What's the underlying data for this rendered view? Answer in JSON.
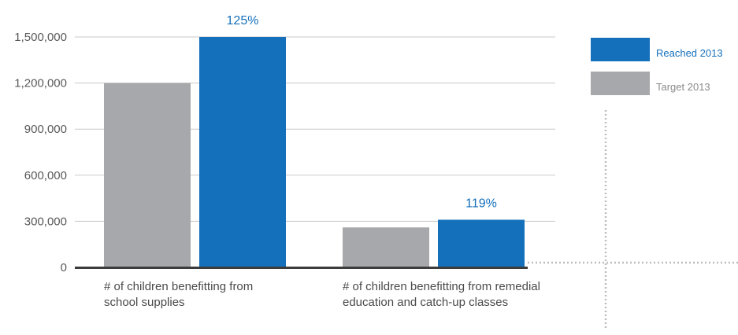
{
  "colors": {
    "reached": "#1470bb",
    "target": "#a7a8ab",
    "axis": "#3c3c3c",
    "grid": "#c9c9c9",
    "dotted": "#bdbdbd"
  },
  "chart_data": {
    "type": "bar",
    "categories": [
      [
        "# of children benefitting from",
        "school supplies"
      ],
      [
        "# of children benefitting from remedial",
        "education and catch-up classes"
      ]
    ],
    "series": [
      {
        "name": "Target 2013",
        "values": [
          1200000,
          260000
        ]
      },
      {
        "name": "Reached 2013",
        "values": [
          1500000,
          310000
        ]
      }
    ],
    "data_labels": [
      "125%",
      "119%"
    ],
    "yticks": [
      "0",
      "300,000",
      "600,000",
      "900,000",
      "1,200,000",
      "1,500,000"
    ],
    "ylim": [
      0,
      1500000
    ],
    "grid": true,
    "legend_position": "right",
    "legend": [
      {
        "label": "Reached 2013",
        "series": "Reached 2013"
      },
      {
        "label": "Target 2013",
        "series": "Target 2013"
      }
    ]
  }
}
